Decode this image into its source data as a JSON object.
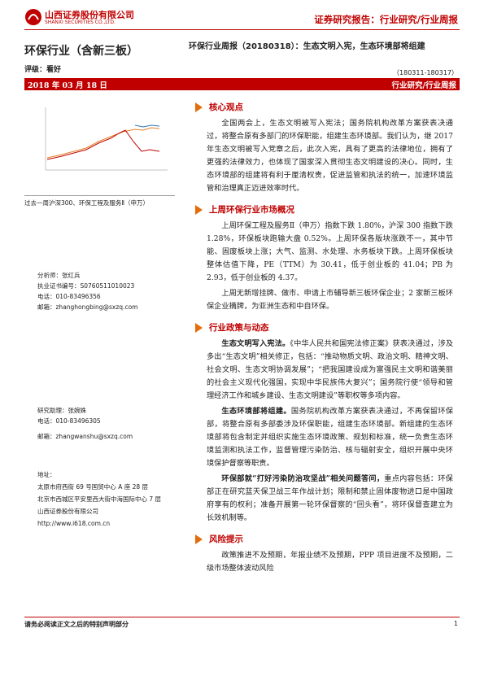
{
  "header": {
    "company_cn": "山西证券股份有限公司",
    "company_en": "SHANXI SECURITIES CO.,LTD.",
    "report_type": "证券研究报告：行业研究/行业周报"
  },
  "sidebar": {
    "industry": "环保行业（含新三板）",
    "rating": "评级：看好",
    "date": "2018 年 03 月 18 日",
    "chart_caption": "过去一周沪深300、环保工程及服务Ⅱ（申万）",
    "analyst": [
      "分析师：张红兵",
      "执业证书编号：S0760511010023",
      "电话：010-83496356",
      "邮箱：zhanghongbing@sxzq.com"
    ],
    "assistant": [
      "研究助理：张婉姝",
      "电话：010-83496305",
      "邮箱：zhangwanshu@sxzq.com"
    ],
    "address": [
      "地址：",
      "太原市府西街 69 号国贸中心 A 座 28 层",
      "北京市西城区平安里西大街中海国际中心 7 层",
      "山西证券股份有限公司",
      "http://www.i618.com.cn"
    ]
  },
  "main": {
    "title": "环保行业周报（20180318）：生态文明入宪，生态环境部将组建",
    "period": "（180311-180317）",
    "tag": "行业研究/行业周报",
    "sections": [
      {
        "heading": "核心观点",
        "paragraphs": [
          {
            "text": "全国两会上，生态文明被写入宪法；国务院机构改革方案获表决通过，将整合原有多部门的环保职能，组建生态环境部。我们认为，继 2017 年生态文明被写入党章之后，此次入宪，具有了更高的法律地位，拥有了更强的法律效力，也体现了国家深入贯彻生态文明建设的决心。同时，生态环境部的组建将有利于厘清权责，促进监管和执法的统一，加速环境监管和治理真正迈进效率时代。"
          }
        ]
      },
      {
        "heading": "上周环保行业市场概况",
        "paragraphs": [
          {
            "text": "上周环保工程及服务Ⅱ（申万）指数下跌 1.80%，沪深 300 指数下跌 1.28%，环保板块跑输大盘 0.52%。上周环保各版块涨跌不一，其中节能、固废板块上涨；大气、监测、水处理、水务板块下跌。上周环保板块整体估值下降，PE（TTM）为 30.41，低于创业板的 41.04；PB 为 2.93，低于创业板的 4.37。"
          },
          {
            "text": "上周无新增挂牌、做市、申请上市辅导新三板环保企业；2 家新三板环保企业摘牌，为亚洲生态和中自环保。"
          }
        ]
      },
      {
        "heading": "行业政策与动态",
        "paragraphs": [
          {
            "lead": "生态文明写入宪法。",
            "text": "《中华人民共和国宪法修正案》获表决通过，涉及多出“生态文明”相关修正，包括：“推动物质文明、政治文明、精神文明、社会文明、生态文明协调发展”；“把我国建设成为富强民主文明和谐美丽的社会主义现代化强国，实现中华民族伟大复兴”；国务院行使“领导和管理经济工作和城乡建设、生态文明建设”等职权等多项内容。"
          },
          {
            "lead": "生态环境部将组建。",
            "text": "国务院机构改革方案获表决通过，不再保留环保部，将整合原有多部委涉及环保职能，组建生态环境部。新组建的生态环境部将包含制定并组织实施生态环境政策、规划和标准，统一负责生态环境监测和执法工作，监督管理污染防治、核与辐射安全，组织开展中央环境保护督察等职责。"
          },
          {
            "lead": "环保部就“打好污染防治攻坚战”相关问题答问，",
            "text": "重点内容包括：环保部正在研究蓝天保卫战三年作战计划；限制和禁止固体废物进口是中国政府享有的权利；准备开展第一轮环保督察的“回头看”，将环保督查建立为长效机制等。"
          }
        ]
      },
      {
        "heading": "风险提示",
        "paragraphs": [
          {
            "text": "政策推进不及预期，年报业绩不及预期，PPP 项目进度不及预期，二级市场整体波动风险"
          }
        ]
      }
    ]
  },
  "footer": {
    "notice": "请务必阅读正文之后的特别声明部分",
    "page": "1"
  }
}
